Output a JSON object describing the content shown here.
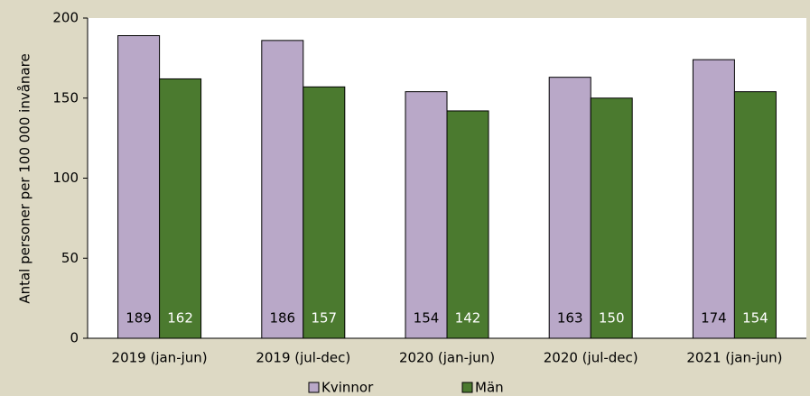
{
  "chart_data": {
    "type": "bar",
    "y_label": "Antal personer per 100 000 invånare",
    "categories": [
      "2019 (jan-jun)",
      "2019 (jul-dec)",
      "2020 (jan-jun)",
      "2020 (jul-dec)",
      "2021 (jan-jun)"
    ],
    "series": [
      {
        "name": "Kvinnor",
        "color": "#b9a8c8",
        "values": [
          189,
          186,
          154,
          163,
          174
        ]
      },
      {
        "name": "Män",
        "color": "#4b7a2f",
        "values": [
          162,
          157,
          142,
          150,
          154
        ]
      }
    ],
    "ylim": [
      0,
      200
    ],
    "yticks": [
      0,
      50,
      100,
      150,
      200
    ],
    "grid": false,
    "legend": "bottom"
  }
}
